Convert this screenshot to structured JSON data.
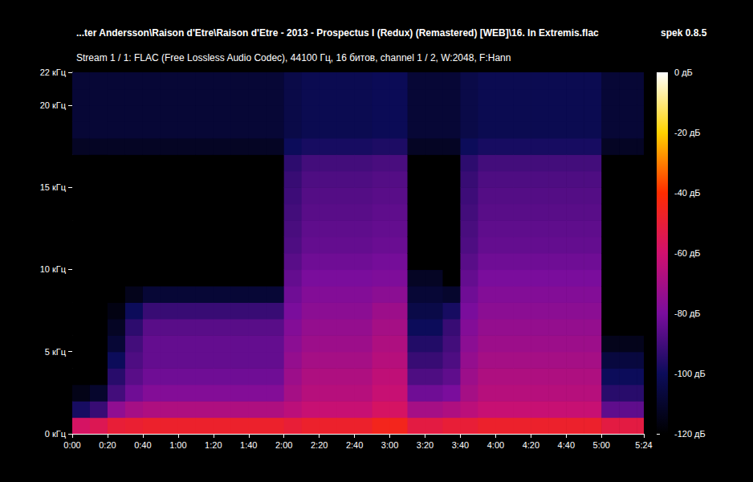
{
  "chart_data": {
    "type": "heatmap",
    "title": "...ter Andersson\\Raison d'Etre\\Raison d'Etre - 2013 - Prospectus I (Redux) (Remastered) [WEB]\\16. In Extremis.flac",
    "subtitle": "Stream 1 / 1: FLAC (Free Lossless Audio Codec), 44100 Гц, 16 битов, channel 1 / 2, W:2048, F:Hann",
    "annotation": "spek 0.8.5",
    "xlim": [
      0,
      324
    ],
    "xticks": [
      {
        "value": 0,
        "label": "0:00"
      },
      {
        "value": 20,
        "label": "0:20"
      },
      {
        "value": 40,
        "label": "0:40"
      },
      {
        "value": 60,
        "label": "1:00"
      },
      {
        "value": 80,
        "label": "1:20"
      },
      {
        "value": 100,
        "label": "1:40"
      },
      {
        "value": 120,
        "label": "2:00"
      },
      {
        "value": 140,
        "label": "2:20"
      },
      {
        "value": 160,
        "label": "2:40"
      },
      {
        "value": 180,
        "label": "3:00"
      },
      {
        "value": 200,
        "label": "3:20"
      },
      {
        "value": 220,
        "label": "3:40"
      },
      {
        "value": 240,
        "label": "4:00"
      },
      {
        "value": 260,
        "label": "4:20"
      },
      {
        "value": 280,
        "label": "4:40"
      },
      {
        "value": 300,
        "label": "5:00"
      },
      {
        "value": 324,
        "label": "5:24"
      }
    ],
    "ylim": [
      0,
      22
    ],
    "yticks": [
      {
        "value": 0,
        "label": "0 кГц"
      },
      {
        "value": 5,
        "label": "5 кГц"
      },
      {
        "value": 10,
        "label": "10 кГц"
      },
      {
        "value": 15,
        "label": "15 кГц"
      },
      {
        "value": 20,
        "label": "20 кГц"
      },
      {
        "value": 22,
        "label": "22 кГц"
      }
    ],
    "grid": false,
    "cells": {
      "time_edges": [
        0,
        10,
        20,
        30,
        40,
        50,
        60,
        70,
        80,
        90,
        100,
        110,
        120,
        130,
        140,
        150,
        160,
        170,
        180,
        190,
        200,
        210,
        220,
        230,
        240,
        250,
        260,
        270,
        280,
        290,
        300,
        310,
        320,
        324
      ],
      "freq_edges": [
        0,
        1,
        2,
        3,
        4,
        5,
        6,
        7,
        8,
        9,
        10,
        11,
        12,
        13,
        14,
        15,
        16,
        17,
        18,
        19,
        20,
        21,
        22
      ],
      "levels": [
        [
          -58,
          -98,
          -115,
          -120,
          -120,
          -120,
          -120,
          -120,
          -120,
          -120,
          -120,
          -120,
          -120,
          -120,
          -120,
          -120,
          -120,
          -112,
          -108,
          -108,
          -108,
          -108
        ],
        [
          -55,
          -92,
          -110,
          -120,
          -120,
          -120,
          -120,
          -120,
          -120,
          -120,
          -120,
          -120,
          -120,
          -120,
          -120,
          -120,
          -120,
          -112,
          -108,
          -108,
          -108,
          -108
        ],
        [
          -50,
          -75,
          -90,
          -95,
          -100,
          -108,
          -112,
          -116,
          -120,
          -120,
          -120,
          -120,
          -120,
          -120,
          -120,
          -120,
          -120,
          -112,
          -108,
          -108,
          -108,
          -108
        ],
        [
          -49,
          -70,
          -82,
          -86,
          -88,
          -90,
          -94,
          -100,
          -114,
          -120,
          -120,
          -120,
          -120,
          -120,
          -120,
          -120,
          -120,
          -112,
          -108,
          -108,
          -108,
          -108
        ],
        [
          -48,
          -68,
          -78,
          -82,
          -84,
          -84,
          -86,
          -92,
          -108,
          -120,
          -120,
          -120,
          -120,
          -120,
          -120,
          -120,
          -120,
          -112,
          -108,
          -108,
          -108,
          -108
        ],
        [
          -48,
          -68,
          -78,
          -82,
          -84,
          -84,
          -86,
          -92,
          -108,
          -120,
          -120,
          -120,
          -120,
          -120,
          -120,
          -120,
          -120,
          -112,
          -108,
          -108,
          -108,
          -108
        ],
        [
          -48,
          -68,
          -78,
          -82,
          -84,
          -84,
          -86,
          -92,
          -108,
          -120,
          -120,
          -120,
          -120,
          -120,
          -120,
          -120,
          -120,
          -112,
          -108,
          -108,
          -108,
          -108
        ],
        [
          -48,
          -68,
          -78,
          -82,
          -84,
          -84,
          -86,
          -92,
          -108,
          -120,
          -120,
          -120,
          -120,
          -120,
          -120,
          -120,
          -120,
          -112,
          -108,
          -108,
          -108,
          -108
        ],
        [
          -48,
          -68,
          -78,
          -82,
          -84,
          -84,
          -86,
          -92,
          -108,
          -120,
          -120,
          -120,
          -120,
          -120,
          -120,
          -120,
          -120,
          -112,
          -108,
          -108,
          -108,
          -108
        ],
        [
          -48,
          -68,
          -78,
          -82,
          -84,
          -84,
          -86,
          -92,
          -108,
          -120,
          -120,
          -120,
          -120,
          -120,
          -120,
          -120,
          -120,
          -112,
          -108,
          -108,
          -108,
          -108
        ],
        [
          -48,
          -68,
          -78,
          -82,
          -84,
          -84,
          -86,
          -92,
          -108,
          -120,
          -120,
          -120,
          -120,
          -120,
          -120,
          -120,
          -120,
          -112,
          -108,
          -108,
          -108,
          -108
        ],
        [
          -48,
          -68,
          -78,
          -82,
          -84,
          -84,
          -86,
          -92,
          -108,
          -120,
          -120,
          -120,
          -120,
          -120,
          -120,
          -120,
          -120,
          -112,
          -108,
          -108,
          -108,
          -108
        ],
        [
          -50,
          -65,
          -70,
          -72,
          -74,
          -76,
          -78,
          -80,
          -82,
          -84,
          -86,
          -88,
          -89,
          -90,
          -91,
          -92,
          -94,
          -100,
          -104,
          -104,
          -104,
          -104
        ],
        [
          -48,
          -62,
          -66,
          -68,
          -70,
          -72,
          -74,
          -76,
          -78,
          -80,
          -82,
          -84,
          -85,
          -86,
          -87,
          -88,
          -90,
          -98,
          -102,
          -102,
          -102,
          -102
        ],
        [
          -48,
          -62,
          -66,
          -68,
          -70,
          -72,
          -74,
          -76,
          -78,
          -80,
          -82,
          -84,
          -85,
          -86,
          -87,
          -88,
          -90,
          -98,
          -102,
          -102,
          -102,
          -102
        ],
        [
          -48,
          -62,
          -66,
          -68,
          -70,
          -72,
          -74,
          -76,
          -78,
          -80,
          -82,
          -84,
          -85,
          -86,
          -87,
          -88,
          -90,
          -98,
          -102,
          -102,
          -102,
          -102
        ],
        [
          -48,
          -62,
          -66,
          -68,
          -70,
          -72,
          -74,
          -76,
          -78,
          -80,
          -82,
          -84,
          -85,
          -86,
          -87,
          -88,
          -90,
          -98,
          -102,
          -102,
          -102,
          -102
        ],
        [
          -45,
          -58,
          -62,
          -64,
          -66,
          -68,
          -70,
          -72,
          -76,
          -79,
          -81,
          -83,
          -84,
          -85,
          -86,
          -87,
          -89,
          -97,
          -101,
          -101,
          -101,
          -101
        ],
        [
          -45,
          -58,
          -62,
          -64,
          -66,
          -68,
          -70,
          -72,
          -76,
          -79,
          -81,
          -83,
          -84,
          -85,
          -86,
          -87,
          -89,
          -97,
          -101,
          -101,
          -101,
          -101
        ],
        [
          -52,
          -70,
          -82,
          -88,
          -92,
          -96,
          -100,
          -104,
          -108,
          -112,
          -120,
          -120,
          -120,
          -120,
          -120,
          -120,
          -120,
          -112,
          -108,
          -108,
          -108,
          -108
        ],
        [
          -52,
          -70,
          -82,
          -88,
          -92,
          -96,
          -100,
          -104,
          -108,
          -112,
          -120,
          -120,
          -120,
          -120,
          -120,
          -120,
          -120,
          -112,
          -108,
          -108,
          -108,
          -108
        ],
        [
          -50,
          -68,
          -80,
          -85,
          -88,
          -90,
          -92,
          -98,
          -110,
          -120,
          -120,
          -120,
          -120,
          -120,
          -120,
          -120,
          -120,
          -112,
          -108,
          -108,
          -108,
          -108
        ],
        [
          -50,
          -65,
          -70,
          -72,
          -74,
          -76,
          -78,
          -80,
          -82,
          -84,
          -86,
          -88,
          -89,
          -90,
          -91,
          -92,
          -94,
          -100,
          -104,
          -104,
          -104,
          -104
        ],
        [
          -48,
          -62,
          -66,
          -68,
          -70,
          -72,
          -74,
          -76,
          -78,
          -80,
          -82,
          -84,
          -85,
          -86,
          -87,
          -88,
          -90,
          -98,
          -102,
          -102,
          -102,
          -102
        ],
        [
          -48,
          -62,
          -66,
          -68,
          -70,
          -72,
          -74,
          -76,
          -78,
          -80,
          -82,
          -84,
          -85,
          -86,
          -87,
          -88,
          -90,
          -98,
          -102,
          -102,
          -102,
          -102
        ],
        [
          -48,
          -62,
          -66,
          -68,
          -70,
          -72,
          -74,
          -76,
          -78,
          -80,
          -82,
          -84,
          -85,
          -86,
          -87,
          -88,
          -90,
          -98,
          -102,
          -102,
          -102,
          -102
        ],
        [
          -48,
          -62,
          -66,
          -68,
          -70,
          -72,
          -74,
          -76,
          -78,
          -80,
          -82,
          -84,
          -85,
          -86,
          -87,
          -88,
          -90,
          -98,
          -102,
          -102,
          -102,
          -102
        ],
        [
          -48,
          -62,
          -66,
          -68,
          -70,
          -72,
          -74,
          -76,
          -78,
          -80,
          -82,
          -84,
          -85,
          -86,
          -87,
          -88,
          -90,
          -98,
          -102,
          -102,
          -102,
          -102
        ],
        [
          -48,
          -62,
          -66,
          -68,
          -70,
          -72,
          -74,
          -76,
          -78,
          -80,
          -82,
          -84,
          -85,
          -86,
          -87,
          -88,
          -90,
          -98,
          -102,
          -102,
          -102,
          -102
        ],
        [
          -48,
          -62,
          -66,
          -68,
          -70,
          -72,
          -74,
          -76,
          -78,
          -80,
          -82,
          -84,
          -85,
          -86,
          -87,
          -88,
          -90,
          -98,
          -102,
          -102,
          -102,
          -102
        ],
        [
          -52,
          -85,
          -95,
          -100,
          -106,
          -114,
          -120,
          -120,
          -120,
          -120,
          -120,
          -120,
          -120,
          -120,
          -120,
          -120,
          -120,
          -112,
          -108,
          -108,
          -108,
          -108
        ],
        [
          -52,
          -85,
          -95,
          -100,
          -106,
          -114,
          -120,
          -120,
          -120,
          -120,
          -120,
          -120,
          -120,
          -120,
          -120,
          -120,
          -120,
          -112,
          -108,
          -108,
          -108,
          -108
        ],
        [
          -52,
          -85,
          -95,
          -100,
          -106,
          -114,
          -120,
          -120,
          -120,
          -120,
          -120,
          -120,
          -120,
          -120,
          -120,
          -120,
          -120,
          -112,
          -108,
          -108,
          -108,
          -108
        ]
      ]
    },
    "colorbar": {
      "range": [
        -120,
        0
      ],
      "ticks": [
        {
          "value": -120,
          "label": "-120 дБ"
        },
        {
          "value": -100,
          "label": "-100 дБ"
        },
        {
          "value": -80,
          "label": "-80 дБ"
        },
        {
          "value": -60,
          "label": "-60 дБ"
        },
        {
          "value": -40,
          "label": "-40 дБ"
        },
        {
          "value": -20,
          "label": "-20 дБ"
        },
        {
          "value": 0,
          "label": "0 дБ"
        }
      ]
    }
  }
}
